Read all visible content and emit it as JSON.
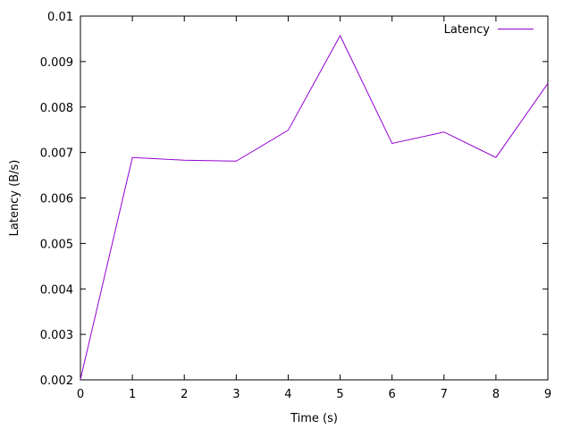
{
  "chart_data": {
    "type": "line",
    "title": "",
    "xlabel": "Time (s)",
    "ylabel": "Latency (B/s)",
    "xlim": [
      0,
      9
    ],
    "ylim": [
      0.002,
      0.01
    ],
    "x_ticks": [
      "0",
      "1",
      "2",
      "3",
      "4",
      "5",
      "6",
      "7",
      "8",
      "9"
    ],
    "y_ticks": [
      "0.002",
      "0.003",
      "0.004",
      "0.005",
      "0.006",
      "0.007",
      "0.008",
      "0.009",
      "0.01"
    ],
    "grid": false,
    "legend_position": "top-right",
    "series": [
      {
        "name": "Latency",
        "color": "#9400d3",
        "x": [
          0,
          1,
          2,
          3,
          4,
          5,
          6,
          7,
          8,
          9
        ],
        "y": [
          0.00201,
          0.00689,
          0.00683,
          0.00681,
          0.00749,
          0.00957,
          0.0072,
          0.00745,
          0.00689,
          0.00852
        ]
      }
    ]
  }
}
